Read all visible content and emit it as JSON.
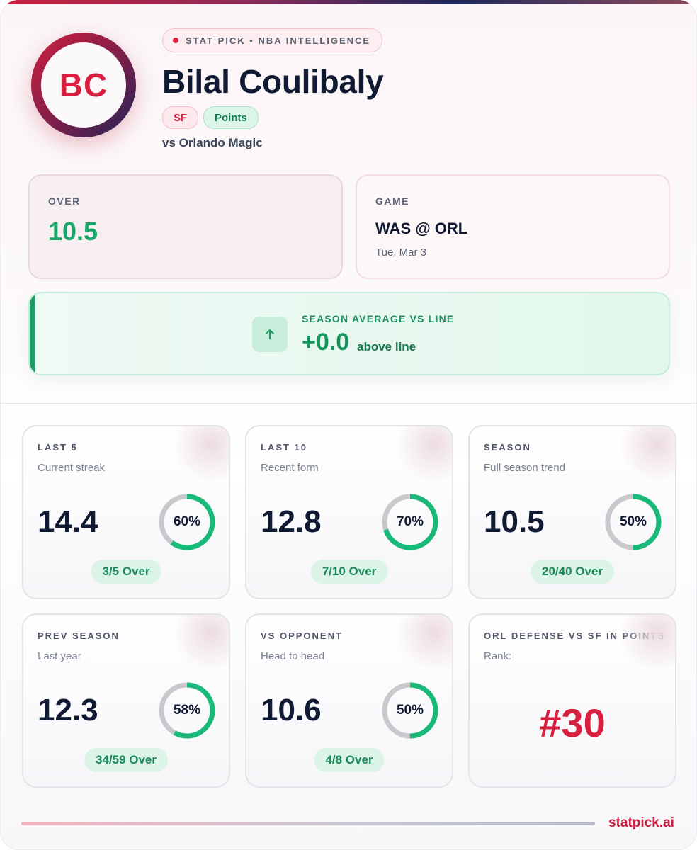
{
  "header": {
    "badge": "STAT PICK • NBA INTELLIGENCE",
    "initials": "BC",
    "player_name": "Bilal Coulibaly",
    "position": "SF",
    "stat_type": "Points",
    "opponent": "vs Orlando Magic"
  },
  "line_box": {
    "label": "OVER",
    "value": "10.5"
  },
  "game_box": {
    "label": "GAME",
    "matchup": "WAS @ ORL",
    "date": "Tue, Mar 3"
  },
  "season_avg": {
    "label": "SEASON AVERAGE VS LINE",
    "delta": "+0.0",
    "suffix": "above line",
    "icon": "arrow-up-icon"
  },
  "stats": [
    {
      "label": "LAST 5",
      "sub": "Current streak",
      "value": "14.4",
      "pct": 60,
      "pct_text": "60%",
      "record": "3/5 Over"
    },
    {
      "label": "LAST 10",
      "sub": "Recent form",
      "value": "12.8",
      "pct": 70,
      "pct_text": "70%",
      "record": "7/10 Over"
    },
    {
      "label": "SEASON",
      "sub": "Full season trend",
      "value": "10.5",
      "pct": 50,
      "pct_text": "50%",
      "record": "20/40 Over"
    },
    {
      "label": "PREV SEASON",
      "sub": "Last year",
      "value": "12.3",
      "pct": 58,
      "pct_text": "58%",
      "record": "34/59 Over"
    },
    {
      "label": "VS OPPONENT",
      "sub": "Head to head",
      "value": "10.6",
      "pct": 50,
      "pct_text": "50%",
      "record": "4/8 Over"
    }
  ],
  "defense": {
    "label": "ORL DEFENSE VS SF IN POINTS",
    "sub": "Rank:",
    "rank": "#30"
  },
  "footer": {
    "brand": "statpick.ai"
  },
  "colors": {
    "accent_red": "#d81f3f",
    "accent_green": "#1aa56b",
    "ring_track": "#c9c9cd",
    "ring_fill": "#19b97a"
  }
}
